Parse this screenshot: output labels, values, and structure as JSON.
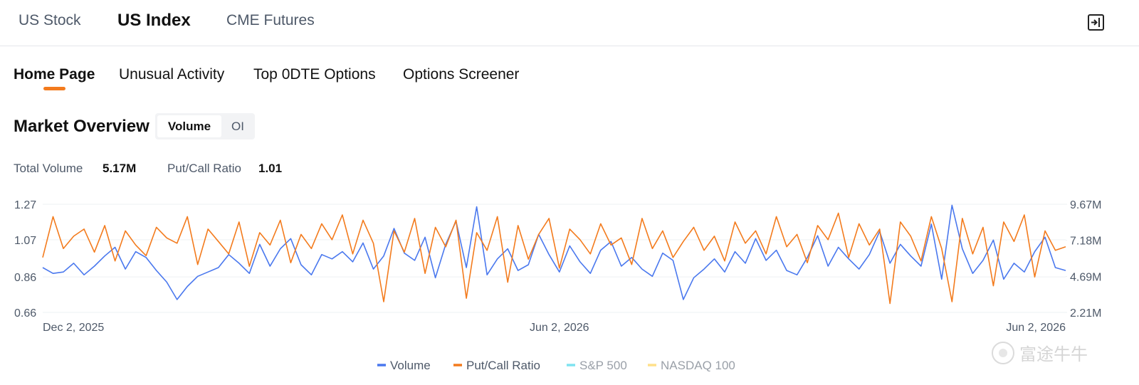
{
  "tabs": [
    "US Stock",
    "US Index",
    "CME Futures"
  ],
  "subtabs": [
    "Home Page",
    "Unusual Activity",
    "Top 0DTE Options",
    "Options Screener"
  ],
  "section_title": "Market Overview",
  "toggle": [
    "Volume",
    "OI"
  ],
  "stats": [
    {
      "label": "Total Volume",
      "value": "5.17M"
    },
    {
      "label": "Put/Call Ratio",
      "value": "1.01"
    }
  ],
  "watermark": "富途牛牛",
  "chart_data": {
    "type": "line",
    "categories": [
      "Dec 2, 2025",
      null,
      null,
      null,
      null,
      null,
      null,
      null,
      null,
      null,
      null,
      null,
      null,
      null,
      null,
      null,
      null,
      null,
      null,
      null,
      null,
      null,
      null,
      null,
      null,
      null,
      null,
      null,
      null,
      null,
      null,
      null,
      null,
      null,
      null,
      null,
      null,
      null,
      null,
      null,
      null,
      null,
      null,
      null,
      null,
      null,
      null,
      null,
      null,
      null,
      "Jun 2, 2026",
      null,
      null,
      null,
      null,
      null,
      null,
      null,
      null,
      null,
      null,
      null,
      null,
      null,
      null,
      null,
      null,
      null,
      null,
      null,
      null,
      null,
      null,
      null,
      null,
      null,
      null,
      null,
      null,
      null,
      null,
      null,
      null,
      null,
      null,
      null,
      null,
      null,
      null,
      null,
      null,
      null,
      null,
      null,
      null,
      null,
      null,
      null,
      null,
      "Jun 2, 2026"
    ],
    "series": [
      {
        "name": "Volume",
        "color": "#4a78ee",
        "axis": "y2",
        "values": [
          5300000,
          4900000,
          5000000,
          5600000,
          4800000,
          5400000,
          6100000,
          6700000,
          5200000,
          6400000,
          6000000,
          5100000,
          4300000,
          3100000,
          4000000,
          4700000,
          5000000,
          5300000,
          6200000,
          5600000,
          4900000,
          6900000,
          5400000,
          6600000,
          7300000,
          5500000,
          4800000,
          6200000,
          5900000,
          6400000,
          5700000,
          7000000,
          5200000,
          6100000,
          8000000,
          6300000,
          5800000,
          7400000,
          4600000,
          6900000,
          8500000,
          5300000,
          9500000,
          4800000,
          5900000,
          6600000,
          5100000,
          5500000,
          7600000,
          6200000,
          5000000,
          6800000,
          5700000,
          4900000,
          6500000,
          7100000,
          5400000,
          6000000,
          5200000,
          4700000,
          6300000,
          5800000,
          3100000,
          4600000,
          5200000,
          5900000,
          5000000,
          6400000,
          5600000,
          7300000,
          5800000,
          6500000,
          5100000,
          4800000,
          6000000,
          7500000,
          5400000,
          6700000,
          5900000,
          5200000,
          6200000,
          7800000,
          5600000,
          6900000,
          6100000,
          5400000,
          8300000,
          4500000,
          9600000,
          6600000,
          4900000,
          5800000,
          7200000,
          4500000,
          5600000,
          5000000,
          6400000,
          7400000,
          5300000,
          5100000
        ]
      },
      {
        "name": "Put/Call Ratio",
        "color": "#f37b1d",
        "values": [
          0.97,
          1.2,
          1.02,
          1.09,
          1.13,
          1.0,
          1.15,
          0.95,
          1.12,
          1.04,
          0.98,
          1.14,
          1.08,
          1.05,
          1.2,
          0.93,
          1.13,
          1.06,
          0.99,
          1.17,
          0.92,
          1.11,
          1.04,
          1.18,
          0.94,
          1.1,
          1.02,
          1.16,
          1.07,
          1.21,
          0.99,
          1.18,
          1.05,
          0.72,
          1.12,
          1.0,
          1.19,
          0.88,
          1.14,
          1.03,
          1.18,
          0.74,
          1.11,
          1.01,
          1.2,
          0.83,
          1.15,
          0.96,
          1.1,
          1.19,
          0.91,
          1.13,
          1.07,
          0.99,
          1.16,
          1.04,
          1.08,
          0.93,
          1.19,
          1.02,
          1.12,
          0.97,
          1.06,
          1.14,
          1.01,
          1.09,
          0.95,
          1.17,
          1.05,
          1.12,
          0.99,
          1.2,
          1.03,
          1.1,
          0.94,
          1.15,
          1.07,
          1.22,
          0.97,
          1.16,
          1.04,
          1.13,
          0.71,
          1.17,
          1.09,
          0.95,
          1.2,
          1.02,
          0.72,
          1.19,
          0.99,
          1.14,
          0.81,
          1.17,
          1.06,
          1.21,
          0.86,
          1.12,
          1.01,
          1.03
        ]
      }
    ],
    "legend_inactive": [
      {
        "name": "S&P 500",
        "color": "#7fe3f0"
      },
      {
        "name": "NASDAQ 100",
        "color": "#ffe08a"
      }
    ],
    "ylim": [
      0.66,
      1.27
    ],
    "yticks": [
      0.66,
      0.86,
      1.07,
      1.27
    ],
    "y2lim": [
      2210000,
      9670000
    ],
    "y2ticks": [
      {
        "value": 2210000,
        "label": "2.21M"
      },
      {
        "value": 4690000,
        "label": "4.69M"
      },
      {
        "value": 7180000,
        "label": "7.18M"
      },
      {
        "value": 9670000,
        "label": "9.67M"
      }
    ],
    "grid": true,
    "legend": "bottom"
  }
}
